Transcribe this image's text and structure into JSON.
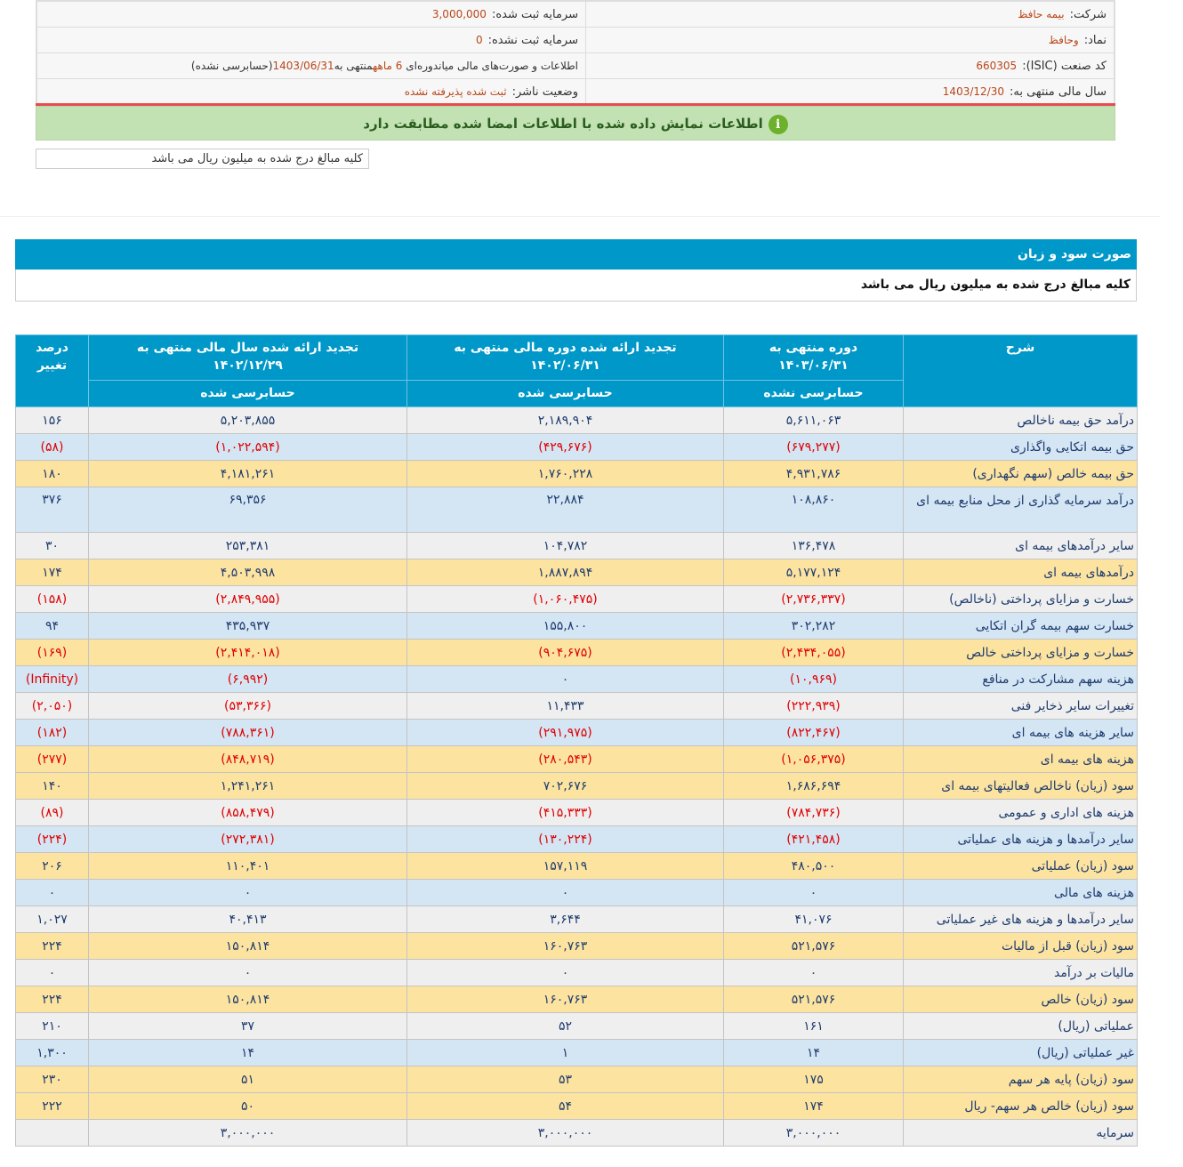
{
  "info": {
    "company_label": "شرکت:",
    "company": "بیمه حافظ",
    "reg_capital_label": "سرمایه ثبت شده:",
    "reg_capital": "3,000,000",
    "symbol_label": "نماد:",
    "symbol": "وحافظ",
    "unreg_capital_label": "سرمایه ثبت نشده:",
    "unreg_capital": "0",
    "isic_label": "کد صنعت (ISIC):",
    "isic": "660305",
    "report_desc_a": "اطلاعات و صورت‌های مالی میاندوره‌ای ",
    "report_months": "6 ماهه",
    "report_desc_b": "منتهی به",
    "report_date": "1403/06/31",
    "report_status": "(حسابرسی نشده)",
    "fiscal_label": "سال مالی منتهی به:",
    "fiscal": "1403/12/30",
    "publisher_label": "وضعیت ناشر:",
    "publisher": "ثبت شده پذیرفته نشده"
  },
  "verified_msg": "اطلاعات نمایش داده شده با اطلاعات امضا شده مطابقت دارد",
  "amount_note": "کلیه مبالغ درج شده به میلیون ریال می باشد",
  "section_title": "صورت سود و زیان",
  "section_sub": "کلیه مبالغ درج شده به میلیون ریال می باشد",
  "colors": {
    "header": "#0097c9",
    "negative": "#e00000",
    "row_gray": "#efefef",
    "row_blue": "#d4e5f4",
    "row_yellow": "#fde3a0"
  },
  "table": {
    "headers": {
      "desc": "شرح",
      "c1": "دوره منتهی به",
      "c1_date": "۱۴۰۳/۰۶/۳۱",
      "c1_status": "حسابرسی نشده",
      "c2": "تجدید ارائه شده دوره مالی منتهی به",
      "c2_date": "۱۴۰۲/۰۶/۳۱",
      "c2_status": "حسابرسی شده",
      "c3": "تجدید ارائه شده سال مالی منتهی به",
      "c3_date": "۱۴۰۲/۱۲/۲۹",
      "c3_status": "حسابرسی شده",
      "pct": "درصد تغییر"
    },
    "rows": [
      {
        "s": "g",
        "label": "درآمد حق بیمه ناخالص",
        "v": [
          "۵,۶۱۱,۰۶۳",
          "۲,۱۸۹,۹۰۴",
          "۵,۲۰۳,۸۵۵",
          "۱۵۶"
        ]
      },
      {
        "s": "b",
        "label": "حق بیمه اتکایی واگذاری",
        "v": [
          "(۶۷۹,۲۷۷)",
          "(۴۲۹,۶۷۶)",
          "(۱,۰۲۲,۵۹۴)",
          "(۵۸)"
        ]
      },
      {
        "s": "y",
        "label": "حق بیمه خالص (سهم نگهداری)",
        "v": [
          "۴,۹۳۱,۷۸۶",
          "۱,۷۶۰,۲۲۸",
          "۴,۱۸۱,۲۶۱",
          "۱۸۰"
        ]
      },
      {
        "s": "b",
        "label": "درآمد سرمایه گذاری از محل منابع بیمه ای",
        "v": [
          "۱۰۸,۸۶۰",
          "۲۲,۸۸۴",
          "۶۹,۳۵۶",
          "۳۷۶"
        ],
        "tall": true
      },
      {
        "s": "g",
        "label": "سایر درآمدهای بیمه ای",
        "v": [
          "۱۳۶,۴۷۸",
          "۱۰۴,۷۸۲",
          "۲۵۳,۳۸۱",
          "۳۰"
        ]
      },
      {
        "s": "y",
        "label": "درآمدهای بیمه ای",
        "v": [
          "۵,۱۷۷,۱۲۴",
          "۱,۸۸۷,۸۹۴",
          "۴,۵۰۳,۹۹۸",
          "۱۷۴"
        ]
      },
      {
        "s": "g",
        "label": "خسارت و مزایای پرداختی (ناخالص)",
        "v": [
          "(۲,۷۳۶,۳۳۷)",
          "(۱,۰۶۰,۴۷۵)",
          "(۲,۸۴۹,۹۵۵)",
          "(۱۵۸)"
        ]
      },
      {
        "s": "b",
        "label": "خسارت سهم بیمه گران اتکایی",
        "v": [
          "۳۰۲,۲۸۲",
          "۱۵۵,۸۰۰",
          "۴۳۵,۹۳۷",
          "۹۴"
        ]
      },
      {
        "s": "y",
        "label": "خسارت و مزایای پرداختی خالص",
        "v": [
          "(۲,۴۳۴,۰۵۵)",
          "(۹۰۴,۶۷۵)",
          "(۲,۴۱۴,۰۱۸)",
          "(۱۶۹)"
        ]
      },
      {
        "s": "b",
        "label": "هزینه سهم مشارکت در منافع",
        "v": [
          "(۱۰,۹۶۹)",
          "۰",
          "(۶,۹۹۲)",
          "(Infinity)"
        ]
      },
      {
        "s": "g",
        "label": "تغییرات سایر ذخایر فنی",
        "v": [
          "(۲۲۲,۹۳۹)",
          "۱۱,۴۳۳",
          "(۵۳,۳۶۶)",
          "(۲,۰۵۰)"
        ]
      },
      {
        "s": "b",
        "label": "سایر هزینه های بیمه ای",
        "v": [
          "(۸۲۲,۴۶۷)",
          "(۲۹۱,۹۷۵)",
          "(۷۸۸,۳۶۱)",
          "(۱۸۲)"
        ]
      },
      {
        "s": "y",
        "label": "هزینه های بیمه ای",
        "v": [
          "(۱,۰۵۶,۳۷۵)",
          "(۲۸۰,۵۴۳)",
          "(۸۴۸,۷۱۹)",
          "(۲۷۷)"
        ]
      },
      {
        "s": "y",
        "label": "سود (زیان) ناخالص فعالیتهای بیمه ای",
        "v": [
          "۱,۶۸۶,۶۹۴",
          "۷۰۲,۶۷۶",
          "۱,۲۴۱,۲۶۱",
          "۱۴۰"
        ]
      },
      {
        "s": "g",
        "label": "هزینه های اداری و عمومی",
        "v": [
          "(۷۸۴,۷۳۶)",
          "(۴۱۵,۳۳۳)",
          "(۸۵۸,۴۷۹)",
          "(۸۹)"
        ]
      },
      {
        "s": "b",
        "label": "سایر درآمدها و هزینه های عملیاتی",
        "v": [
          "(۴۲۱,۴۵۸)",
          "(۱۳۰,۲۲۴)",
          "(۲۷۲,۳۸۱)",
          "(۲۲۴)"
        ]
      },
      {
        "s": "y",
        "label": "سود (زیان) عملیاتی",
        "v": [
          "۴۸۰,۵۰۰",
          "۱۵۷,۱۱۹",
          "۱۱۰,۴۰۱",
          "۲۰۶"
        ]
      },
      {
        "s": "b",
        "label": "هزینه های مالی",
        "v": [
          "۰",
          "۰",
          "۰",
          "۰"
        ]
      },
      {
        "s": "g",
        "label": "سایر درآمدها و هزینه های غیر عملیاتی",
        "v": [
          "۴۱,۰۷۶",
          "۳,۶۴۴",
          "۴۰,۴۱۳",
          "۱,۰۲۷"
        ]
      },
      {
        "s": "y",
        "label": "سود (زیان) قبل از مالیات",
        "v": [
          "۵۲۱,۵۷۶",
          "۱۶۰,۷۶۳",
          "۱۵۰,۸۱۴",
          "۲۲۴"
        ]
      },
      {
        "s": "g",
        "label": "مالیات بر درآمد",
        "v": [
          "۰",
          "۰",
          "۰",
          "۰"
        ]
      },
      {
        "s": "y",
        "label": "سود (زیان) خالص",
        "v": [
          "۵۲۱,۵۷۶",
          "۱۶۰,۷۶۳",
          "۱۵۰,۸۱۴",
          "۲۲۴"
        ]
      },
      {
        "s": "g",
        "label": "عملیاتی (ریال)",
        "v": [
          "۱۶۱",
          "۵۲",
          "۳۷",
          "۲۱۰"
        ]
      },
      {
        "s": "b",
        "label": "غیر عملیاتی (ریال)",
        "v": [
          "۱۴",
          "۱",
          "۱۴",
          "۱,۳۰۰"
        ]
      },
      {
        "s": "y",
        "label": "سود (زیان) پایه هر سهم",
        "v": [
          "۱۷۵",
          "۵۳",
          "۵۱",
          "۲۳۰"
        ]
      },
      {
        "s": "y",
        "label": "سود (زیان) خالص هر سهم- ریال",
        "v": [
          "۱۷۴",
          "۵۴",
          "۵۰",
          "۲۲۲"
        ]
      },
      {
        "s": "g",
        "label": "سرمایه",
        "v": [
          "۳,۰۰۰,۰۰۰",
          "۳,۰۰۰,۰۰۰",
          "۳,۰۰۰,۰۰۰",
          ""
        ]
      }
    ]
  }
}
